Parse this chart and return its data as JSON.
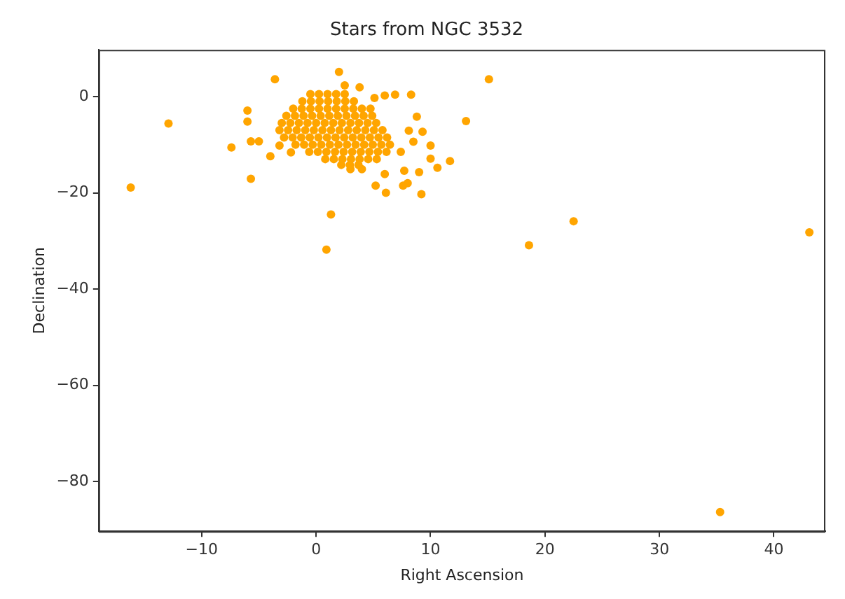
{
  "chart_data": {
    "type": "scatter",
    "title": "Stars from NGC 3532",
    "xlabel": "Right Ascension",
    "ylabel": "Declination",
    "marker": "circle",
    "grid": false,
    "legend": false,
    "xlim": [
      -19,
      44.5
    ],
    "ylim": [
      -90.3,
      9.7
    ],
    "xticks": [
      {
        "value": -10,
        "label": "−10"
      },
      0,
      10,
      20,
      30,
      40
    ],
    "yticks": [
      0,
      {
        "value": -20,
        "label": "−20"
      },
      {
        "value": -40,
        "label": "−40"
      },
      {
        "value": -60,
        "label": "−60"
      },
      {
        "value": -80,
        "label": "−80"
      }
    ],
    "series": [
      {
        "color": "#ffa500",
        "x": [
          -16.2,
          -12.9,
          -7.4,
          -5.7,
          -6.0,
          -6.0,
          -5.7,
          -5.0,
          -4.0,
          -3.6,
          -3.2,
          -2.2,
          2.0,
          2.5,
          3.8,
          1.3,
          0.9,
          15.1,
          13.1,
          11.7,
          10.6,
          10.0,
          10.0,
          9.2,
          9.0,
          9.3,
          8.8,
          8.3,
          8.0,
          7.6,
          7.7,
          6.1,
          6.0,
          5.2,
          5.1,
          6.0,
          6.9,
          4.0,
          3.0,
          8.1,
          8.5,
          7.4,
          18.6,
          22.5,
          43.1,
          35.3,
          -0.5,
          0.25,
          1,
          1.75,
          2.5,
          -1.2,
          -0.45,
          0.3,
          1.05,
          1.8,
          2.55,
          3.3,
          -2,
          -1.25,
          -0.5,
          0.25,
          1,
          1.75,
          2.5,
          3.25,
          4,
          4.75,
          -2.6,
          -1.85,
          -1.1,
          -0.35,
          0.4,
          1.15,
          1.9,
          2.65,
          3.4,
          4.15,
          4.9,
          -3,
          -2.25,
          -1.5,
          -0.75,
          0,
          0.75,
          1.5,
          2.25,
          3,
          3.75,
          4.5,
          5.25,
          -3.2,
          -2.45,
          -1.7,
          -0.95,
          -0.2,
          0.55,
          1.3,
          2.05,
          2.8,
          3.55,
          4.3,
          5.05,
          5.8,
          -2.8,
          -2.05,
          -1.3,
          -0.55,
          0.2,
          0.95,
          1.7,
          2.45,
          3.2,
          3.95,
          4.7,
          5.45,
          6.2,
          -1.8,
          -1.05,
          -0.3,
          0.45,
          1.2,
          1.95,
          2.7,
          3.45,
          4.2,
          4.95,
          5.7,
          6.45,
          -0.6,
          0.15,
          0.9,
          1.65,
          2.4,
          3.15,
          3.9,
          4.65,
          5.4,
          6.15,
          0.8,
          1.55,
          2.3,
          3.05,
          3.8,
          4.55,
          5.3,
          2.2,
          2.95,
          3.7
        ],
        "values": [
          -18.9,
          -5.6,
          -10.6,
          -17.1,
          -2.9,
          -5.2,
          -9.3,
          -9.3,
          -12.4,
          3.6,
          -10.2,
          -11.6,
          5.1,
          2.3,
          1.9,
          -24.5,
          -31.8,
          3.6,
          -5.1,
          -13.4,
          -14.8,
          -10.2,
          -12.9,
          -20.3,
          -15.7,
          -7.3,
          -4.2,
          0.4,
          -18.0,
          -18.5,
          -15.4,
          -20.0,
          -16.1,
          -18.5,
          -0.3,
          0.2,
          0.4,
          -15.1,
          -15.1,
          -7.1,
          -9.4,
          -11.5,
          -30.9,
          -25.9,
          -28.2,
          -86.3,
          0.5,
          0.5,
          0.5,
          0.5,
          0.5,
          -1,
          -1,
          -1,
          -1,
          -1,
          -1,
          -1,
          -2.5,
          -2.5,
          -2.5,
          -2.5,
          -2.5,
          -2.5,
          -2.5,
          -2.5,
          -2.5,
          -2.5,
          -4,
          -4,
          -4,
          -4,
          -4,
          -4,
          -4,
          -4,
          -4,
          -4,
          -4,
          -5.5,
          -5.5,
          -5.5,
          -5.5,
          -5.5,
          -5.5,
          -5.5,
          -5.5,
          -5.5,
          -5.5,
          -5.5,
          -5.5,
          -7,
          -7,
          -7,
          -7,
          -7,
          -7,
          -7,
          -7,
          -7,
          -7,
          -7,
          -7,
          -7,
          -8.5,
          -8.5,
          -8.5,
          -8.5,
          -8.5,
          -8.5,
          -8.5,
          -8.5,
          -8.5,
          -8.5,
          -8.5,
          -8.5,
          -8.5,
          -10,
          -10,
          -10,
          -10,
          -10,
          -10,
          -10,
          -10,
          -10,
          -10,
          -10,
          -10,
          -11.5,
          -11.5,
          -11.5,
          -11.5,
          -11.5,
          -11.5,
          -11.5,
          -11.5,
          -11.5,
          -11.5,
          -13,
          -13,
          -13,
          -13,
          -13,
          -13,
          -13,
          -14.2,
          -14.2,
          -14.2
        ]
      }
    ]
  }
}
